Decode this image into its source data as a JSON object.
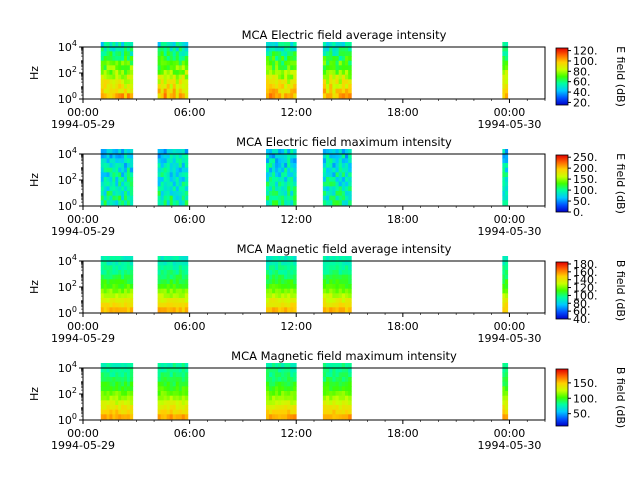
{
  "chart_data": [
    {
      "type": "heatmap",
      "title": "MCA  Electric field average intensity",
      "ylabel": "Hz",
      "yscale": "log",
      "ylim_exponents": [
        0,
        4
      ],
      "y_ticks": [
        {
          "base": "10",
          "exp": "0"
        },
        {
          "base": "10",
          "exp": "2"
        },
        {
          "base": "10",
          "exp": "4"
        }
      ],
      "x_ticks": [
        "00:00",
        "06:00",
        "12:00",
        "18:00",
        "00:00"
      ],
      "x_dates": [
        "1994-05-29",
        "1994-05-30"
      ],
      "colorbar": {
        "label": "E field (dB)",
        "range": [
          15,
          125
        ],
        "ticks": [
          "120.",
          "100.",
          "80.",
          "60.",
          "40.",
          "20."
        ],
        "tick_values": [
          120,
          100,
          80,
          60,
          40,
          20
        ]
      },
      "palette": "rainbow",
      "intensity_level": 0.55,
      "data_blocks_hours": [
        [
          1.0,
          2.8
        ],
        [
          4.2,
          5.9
        ],
        [
          10.3,
          12.0
        ],
        [
          13.5,
          15.1
        ],
        [
          23.6,
          23.9
        ]
      ]
    },
    {
      "type": "heatmap",
      "title": "MCA  Electric field maximum intensity",
      "ylabel": "Hz",
      "yscale": "log",
      "ylim_exponents": [
        0,
        4
      ],
      "y_ticks": [
        {
          "base": "10",
          "exp": "0"
        },
        {
          "base": "10",
          "exp": "2"
        },
        {
          "base": "10",
          "exp": "4"
        }
      ],
      "x_ticks": [
        "00:00",
        "06:00",
        "12:00",
        "18:00",
        "00:00"
      ],
      "x_dates": [
        "1994-05-29",
        "1994-05-30"
      ],
      "colorbar": {
        "label": "E field (dB)",
        "range": [
          0,
          260
        ],
        "ticks": [
          "250.",
          "200.",
          "150.",
          "100.",
          "50.",
          "0."
        ],
        "tick_values": [
          250,
          200,
          150,
          100,
          50,
          0
        ]
      },
      "palette": "rainbow",
      "intensity_level": 0.38,
      "data_blocks_hours": [
        [
          1.0,
          2.8
        ],
        [
          4.2,
          5.9
        ],
        [
          10.3,
          12.0
        ],
        [
          13.5,
          15.1
        ],
        [
          23.6,
          23.9
        ]
      ]
    },
    {
      "type": "heatmap",
      "title": "MCA  Magnetic field average intensity",
      "ylabel": "Hz",
      "yscale": "log",
      "ylim_exponents": [
        0,
        4
      ],
      "y_ticks": [
        {
          "base": "10",
          "exp": "0"
        },
        {
          "base": "10",
          "exp": "2"
        },
        {
          "base": "10",
          "exp": "4"
        }
      ],
      "x_ticks": [
        "00:00",
        "06:00",
        "12:00",
        "18:00",
        "00:00"
      ],
      "x_dates": [
        "1994-05-29",
        "1994-05-30"
      ],
      "colorbar": {
        "label": "B field (dB)",
        "range": [
          40,
          185
        ],
        "ticks": [
          "180.",
          "160.",
          "140.",
          "120.",
          "100.",
          "80.",
          "60.",
          "40."
        ],
        "tick_values": [
          180,
          160,
          140,
          120,
          100,
          80,
          60,
          40
        ]
      },
      "palette": "rainbow",
      "intensity_level": 0.45,
      "data_blocks_hours": [
        [
          1.0,
          2.8
        ],
        [
          4.2,
          5.9
        ],
        [
          10.3,
          12.0
        ],
        [
          13.5,
          15.1
        ],
        [
          23.6,
          23.9
        ]
      ]
    },
    {
      "type": "heatmap",
      "title": "MCA  Magnetic field maximum intensity",
      "ylabel": "Hz",
      "yscale": "log",
      "ylim_exponents": [
        0,
        4
      ],
      "y_ticks": [
        {
          "base": "10",
          "exp": "0"
        },
        {
          "base": "10",
          "exp": "2"
        },
        {
          "base": "10",
          "exp": "4"
        }
      ],
      "x_ticks": [
        "00:00",
        "06:00",
        "12:00",
        "18:00",
        "00:00"
      ],
      "x_dates": [
        "1994-05-29",
        "1994-05-30"
      ],
      "colorbar": {
        "label": "B field (dB)",
        "range": [
          10,
          195
        ],
        "ticks": [
          "150.",
          "100.",
          "50."
        ],
        "tick_values": [
          150,
          100,
          50
        ]
      },
      "palette": "rainbow",
      "intensity_level": 0.48,
      "data_blocks_hours": [
        [
          1.0,
          2.8
        ],
        [
          4.2,
          5.9
        ],
        [
          10.3,
          12.0
        ],
        [
          13.5,
          15.1
        ],
        [
          23.6,
          23.9
        ]
      ]
    }
  ]
}
